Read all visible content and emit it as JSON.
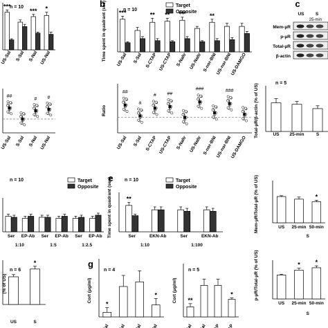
{
  "chart_data": [
    {
      "id": "a",
      "type": "bar",
      "n_label": "n = 10",
      "legend": [
        "Target",
        "Opposite"
      ],
      "categories": [
        "US-Sal",
        "S-Sal",
        "S-Nal",
        "US-Nal"
      ],
      "series": [
        {
          "name": "Target",
          "values": [
            34,
            25,
            30,
            31
          ],
          "err": [
            2,
            2,
            2,
            3
          ]
        },
        {
          "name": "Opposite",
          "values": [
            9,
            21,
            15,
            14
          ],
          "err": [
            1,
            2,
            1,
            2
          ]
        }
      ],
      "sig": [
        "***",
        "",
        "***",
        "*"
      ],
      "ylim": [
        0,
        40
      ]
    },
    {
      "id": "b",
      "type": "bar",
      "n_label": "n = 10",
      "ylabel": "Time spent in quadrant (sec)",
      "legend": [
        "Target",
        "Opposite"
      ],
      "categories": [
        "US-Sal",
        "S-Sal",
        "S-CTAP",
        "US-CTAP",
        "S-Naltr",
        "US-Naltr",
        "S-nor-BNI",
        "US-nor-BNI",
        "US-DAMGO"
      ],
      "series": [
        {
          "name": "Target",
          "values": [
            32,
            21,
            29,
            30,
            31,
            23,
            29,
            25,
            25
          ],
          "err": [
            3,
            3,
            4,
            3,
            3,
            2,
            3,
            3,
            3
          ]
        },
        {
          "name": "Opposite",
          "values": [
            9,
            13,
            11,
            10,
            13,
            10,
            11,
            12,
            18
          ],
          "err": [
            1,
            2,
            2,
            1,
            2,
            1,
            2,
            2,
            2
          ]
        }
      ],
      "sig": [
        "***",
        "",
        "**",
        "**",
        "***",
        "",
        "**",
        "",
        ""
      ],
      "ylim": [
        0,
        40
      ]
    },
    {
      "id": "a2",
      "type": "scatter",
      "categories": [
        "US-Sal",
        "S-Sal",
        "S-Nal",
        "US-Nal"
      ],
      "means": [
        1.8,
        1.0,
        1.6,
        1.7
      ],
      "sig": [
        "##",
        "",
        "#",
        "#"
      ],
      "ylim": [
        0,
        3
      ]
    },
    {
      "id": "b2",
      "type": "scatter",
      "ylabel": "Ratio",
      "categories": [
        "US-Sal",
        "S-Sal",
        "S-CTAP",
        "US-CTAP",
        "S-Naltr",
        "US-Naltr",
        "S-nor-BNI",
        "US-nor-BNI",
        "US-DAMGO"
      ],
      "means": [
        1.8,
        1.1,
        1.6,
        1.7,
        1.0,
        2.0,
        1.3,
        1.9,
        1.2
      ],
      "sig": [
        "##",
        "a",
        "#",
        "##",
        "",
        "###",
        "",
        "###",
        ""
      ],
      "ylim": [
        0,
        3
      ]
    },
    {
      "id": "c",
      "type": "table",
      "label": "c",
      "rows": [
        "Mem-μR",
        "p-μR",
        "Total-μR",
        "β-actin"
      ],
      "cols": [
        "US",
        "S",
        "25-min"
      ]
    },
    {
      "id": "c2",
      "type": "bar",
      "n_label": "n = 5",
      "ylabel": "Total-μR/β-actin (% of US)",
      "categories": [
        "US",
        "25-min",
        "S"
      ],
      "values": [
        100,
        95,
        80
      ],
      "err": [
        15,
        10,
        10
      ],
      "ylim": [
        0,
        150
      ]
    },
    {
      "id": "d",
      "type": "bar",
      "n_label": "n = 10",
      "legend": [
        "Target",
        "Opposite"
      ],
      "categories": [
        "Ser",
        "EP-Ab",
        "Ser",
        "EP-Ab",
        "Ser",
        "EP-Ab"
      ],
      "groups": [
        "1:10",
        "1:5",
        "1:2.5"
      ],
      "series": [
        {
          "name": "Target",
          "values": [
            15,
            13,
            14,
            13,
            13,
            13
          ],
          "err": [
            2,
            2,
            2,
            2,
            2,
            2
          ]
        },
        {
          "name": "Opposite",
          "values": [
            14,
            15,
            14,
            15,
            14,
            16
          ],
          "err": [
            2,
            2,
            2,
            2,
            2,
            2
          ]
        }
      ],
      "ylim": [
        0,
        30
      ]
    },
    {
      "id": "e",
      "type": "bar",
      "label": "e",
      "n_label": "n = 10",
      "ylabel": "Time spent in quadrant (sec)",
      "legend": [
        "Target",
        "Opposite"
      ],
      "categories": [
        "Ser",
        "EKN-Ab",
        "Ser",
        "EKN-Ab"
      ],
      "groups": [
        "1:10",
        "1:100"
      ],
      "series": [
        {
          "name": "Target",
          "values": [
            18,
            15,
            15,
            15
          ],
          "err": [
            2,
            2,
            2,
            2
          ]
        },
        {
          "name": "Opposite",
          "values": [
            11,
            15,
            14,
            14
          ],
          "err": [
            1,
            2,
            2,
            2
          ]
        }
      ],
      "sig": [
        "**",
        "",
        "",
        ""
      ],
      "ylim": [
        0,
        25
      ]
    },
    {
      "id": "f2",
      "type": "bar",
      "ylabel": "Mem-μR/Total-μR (% of US)",
      "categories": [
        "US",
        "25-min",
        "50-min"
      ],
      "group": "S",
      "values": [
        100,
        90,
        80
      ],
      "err": [
        3,
        8,
        6
      ],
      "sig": [
        "",
        "",
        "*"
      ],
      "ylim": [
        0,
        150
      ]
    },
    {
      "id": "f",
      "type": "bar",
      "n_label": "n = 6",
      "ylabel": "(% of US)",
      "categories": [
        "US",
        "S"
      ],
      "values": [
        100,
        128
      ],
      "err": [
        8,
        10
      ],
      "sig": [
        "",
        "*"
      ],
      "ylim": [
        0,
        150
      ]
    },
    {
      "id": "g",
      "type": "bar",
      "label": "g",
      "n_label": "n = 4",
      "ylabel": "Cort (μg/ml)",
      "categories": [
        "US-Sal",
        "S-Sal",
        "S-Nal",
        "US-Nal"
      ],
      "values": [
        0.05,
        0.33,
        0.38,
        0.13
      ],
      "err": [
        0.05,
        0.12,
        0.12,
        0.07
      ],
      "sig": [
        "*",
        "",
        "",
        "*"
      ],
      "ylim": [
        0,
        0.6
      ]
    },
    {
      "id": "g2",
      "type": "bar",
      "n_label": "n = 5",
      "ylabel": "Cort (μg/ml)",
      "categories": [
        "US-Sal",
        "S-Sal",
        "S-CTAP",
        "US-CTAP"
      ],
      "values": [
        0.16,
        0.5,
        0.5,
        0.28
      ],
      "err": [
        0.05,
        0.1,
        0.1,
        0.02
      ],
      "sig": [
        "**",
        "",
        "",
        "*"
      ],
      "ylim": [
        0,
        0.8
      ]
    },
    {
      "id": "h2",
      "type": "bar",
      "ylabel": "p-μR/Total-μR (% of US)",
      "categories": [
        "US",
        "25-min",
        "50-min"
      ],
      "group": "S",
      "values": [
        100,
        120,
        130
      ],
      "err": [
        3,
        8,
        8
      ],
      "sig": [
        "",
        "*",
        "*"
      ],
      "ylim": [
        0,
        150
      ]
    }
  ],
  "panel_letters": [
    "b",
    "c",
    "e",
    "g"
  ]
}
